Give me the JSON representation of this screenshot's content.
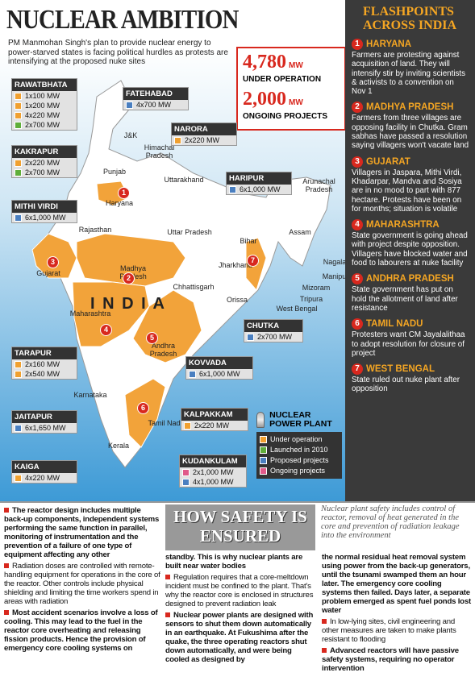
{
  "header": {
    "title": "NUCLEAR AMBITION",
    "intro": "PM Manmohan Singh's plan to provide nuclear energy to power-starved states is facing political hurdles as protests are intensifying at the proposed nuke sites"
  },
  "stats": [
    {
      "value": "4,780",
      "unit": "MW",
      "label": "UNDER OPERATION"
    },
    {
      "value": "2,000",
      "unit": "MW",
      "label": "ONGOING PROJECTS"
    }
  ],
  "plants": [
    {
      "name": "RAWATBHATA",
      "units": [
        {
          "text": "1x100 MW",
          "color": "#f0a030"
        },
        {
          "text": "1x200 MW",
          "color": "#f0a030"
        },
        {
          "text": "4x220 MW",
          "color": "#f0a030"
        },
        {
          "text": "2x700 MW",
          "color": "#5fae3a"
        }
      ]
    },
    {
      "name": "FATEHABAD",
      "units": [
        {
          "text": "4x700 MW",
          "color": "#4a7fc0"
        }
      ]
    },
    {
      "name": "NARORA",
      "units": [
        {
          "text": "2x220 MW",
          "color": "#f0a030"
        }
      ]
    },
    {
      "name": "KAKRAPUR",
      "units": [
        {
          "text": "2x220 MW",
          "color": "#f0a030"
        },
        {
          "text": "2x700 MW",
          "color": "#5fae3a"
        }
      ]
    },
    {
      "name": "HARIPUR",
      "units": [
        {
          "text": "6x1,000 MW",
          "color": "#4a7fc0"
        }
      ]
    },
    {
      "name": "MITHI VIRDI",
      "units": [
        {
          "text": "6x1,000 MW",
          "color": "#4a7fc0"
        }
      ]
    },
    {
      "name": "CHUTKA",
      "units": [
        {
          "text": "2x700 MW",
          "color": "#4a7fc0"
        }
      ]
    },
    {
      "name": "TARAPUR",
      "units": [
        {
          "text": "2x160 MW",
          "color": "#f0a030"
        },
        {
          "text": "2x540 MW",
          "color": "#f0a030"
        }
      ]
    },
    {
      "name": "KOVVADA",
      "units": [
        {
          "text": "6x1,000 MW",
          "color": "#4a7fc0"
        }
      ]
    },
    {
      "name": "JAITAPUR",
      "units": [
        {
          "text": "6x1,650 MW",
          "color": "#4a7fc0"
        }
      ]
    },
    {
      "name": "KALPAKKAM",
      "units": [
        {
          "text": "2x220 MW",
          "color": "#f0a030"
        }
      ]
    },
    {
      "name": "KAIGA",
      "units": [
        {
          "text": "4x220 MW",
          "color": "#f0a030"
        }
      ]
    },
    {
      "name": "KUDANKULAM",
      "units": [
        {
          "text": "2x1,000 MW",
          "color": "#e05a8a"
        },
        {
          "text": "4x1,000 MW",
          "color": "#4a7fc0"
        }
      ]
    }
  ],
  "map": {
    "labels": [
      "J&K",
      "Punjab",
      "Himachal Pradesh",
      "Uttarakhand",
      "Haryana",
      "Rajasthan",
      "Uttar Pradesh",
      "Bihar",
      "Arunachal Pradesh",
      "Assam",
      "Nagaland",
      "Manipur",
      "Mizoram",
      "Tripura",
      "Gujarat",
      "Madhya Pradesh",
      "Jharkhand",
      "Chhattisgarh",
      "Orissa",
      "West Bengal",
      "I N D I A",
      "Maharashtra",
      "Andhra Pradesh",
      "Karnataka",
      "Tamil Nadu",
      "Kerala"
    ]
  },
  "legend": {
    "title": "NUCLEAR POWER PLANT",
    "items": [
      {
        "label": "Under operation",
        "color": "#f0a030"
      },
      {
        "label": "Launched in 2010",
        "color": "#5fae3a"
      },
      {
        "label": "Proposed projects",
        "color": "#4a7fc0"
      },
      {
        "label": "Ongoing projects",
        "color": "#e05a8a"
      }
    ]
  },
  "flashpoints": {
    "title": "FLASHPOINTS ACROSS INDIA",
    "items": [
      {
        "number": "1",
        "state": "HARYANA",
        "text": "Farmers are protesting against acquisition of land. They will intensify stir by inviting scientists & activists to a convention on Nov 1"
      },
      {
        "number": "2",
        "state": "MADHYA PRADESH",
        "text": "Farmers from three villages are opposing facility in Chutka. Gram sabhas have passed a resolution saying villagers won't vacate land"
      },
      {
        "number": "3",
        "state": "GUJARAT",
        "text": "Villagers in Jaspara, Mithi Virdi, Khadarpar, Mandva and Sosiya are in no mood to part with 877 hectare. Protests have been on for months; situation is volatile"
      },
      {
        "number": "4",
        "state": "MAHARASHTRA",
        "text": "State government is going ahead with project despite opposition. Villagers have blocked water and food to labourers at nuke facility"
      },
      {
        "number": "5",
        "state": "ANDHRA PRADESH",
        "text": "State government has put on hold the allotment of land after resistance"
      },
      {
        "number": "6",
        "state": "TAMIL NADU",
        "text": "Protesters want CM Jayalalithaa to adopt resolution for closure of project"
      },
      {
        "number": "7",
        "state": "WEST BENGAL",
        "text": "State ruled out nuke plant after opposition"
      }
    ]
  },
  "safety": {
    "title": "HOW SAFETY IS ENSURED",
    "subtitle": "Nuclear plant safety includes control of reactor, removal of heat generated in the core and prevention of radiation leakage into the environment",
    "columns": [
      [
        {
          "bullet": true,
          "bold": true,
          "text": "The reactor design includes multiple back-up components, independent systems performing the same function in parallel, monitoring of instrumentation and the prevention of a failure of one type of equipment affecting any other"
        },
        {
          "bullet": true,
          "bold": false,
          "text": "Radiation doses are controlled with remote-handling equipment for operations in the core of the reactor. Other controls include physical shielding and limiting the time workers spend in areas with radiation"
        },
        {
          "bullet": true,
          "bold": true,
          "text": "Most accident scenarios involve a loss of cooling. This may lead to the fuel in the reactor core overheating and releasing fission products. Hence the provision of emergency core cooling systems on"
        }
      ],
      [
        {
          "bullet": false,
          "bold": true,
          "text": "standby. This is why nuclear plants are built near water bodies"
        },
        {
          "bullet": true,
          "bold": false,
          "text": "Regulation requires that a core-meltdown incident must be confined to the plant. That's why the reactor core is enclosed in structures designed to prevent radiation leak"
        },
        {
          "bullet": true,
          "bold": true,
          "text": "Nuclear power plants are designed with sensors to shut them down automatically in an earthquake. At Fukushima after the quake, the three operating reactors shut down automatically, and were being cooled as designed by"
        }
      ],
      [
        {
          "bullet": false,
          "bold": true,
          "text": "the normal residual heat removal system using power from the back-up generators, until the tsunami swamped them an hour later. The emergency core cooling systems then failed. Days later, a separate problem emerged as spent fuel ponds lost water"
        },
        {
          "bullet": true,
          "bold": false,
          "text": "In low-lying sites, civil engineering and other measures are taken to make plants resistant to flooding"
        },
        {
          "bullet": true,
          "bold": true,
          "text": "Advanced reactors will have passive safety systems, requiring no operator intervention"
        }
      ]
    ]
  }
}
